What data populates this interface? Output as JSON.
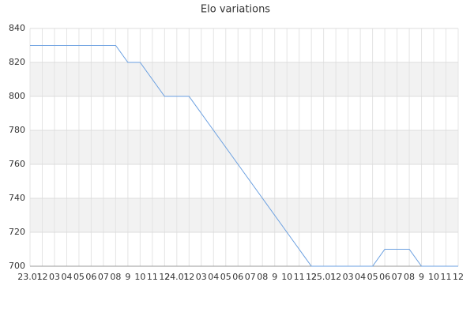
{
  "chart_data": {
    "type": "line",
    "title": "Elo variations",
    "categories": [
      "23.01",
      "12",
      "03",
      "04",
      "05",
      "06",
      "07",
      "08",
      "9",
      "10",
      "11",
      "12",
      "24.01",
      "12",
      "03",
      "04",
      "05",
      "06",
      "07",
      "08",
      "9",
      "10",
      "11",
      "12",
      "25.01",
      "12",
      "03",
      "04",
      "05",
      "06",
      "07",
      "08",
      "9",
      "10",
      "11",
      "12"
    ],
    "values": [
      830,
      830,
      830,
      830,
      830,
      830,
      830,
      830,
      820,
      820,
      810,
      800,
      800,
      800,
      790,
      780,
      770,
      760,
      750,
      740,
      730,
      720,
      710,
      700,
      700,
      700,
      700,
      700,
      700,
      710,
      710,
      710,
      700,
      700,
      700,
      700
    ],
    "color": "#6a9fe0",
    "ylim": [
      700,
      840
    ],
    "yticks": [
      700,
      720,
      740,
      760,
      780,
      800,
      820,
      840
    ],
    "grid": true,
    "band_color": "#f2f2f2"
  }
}
